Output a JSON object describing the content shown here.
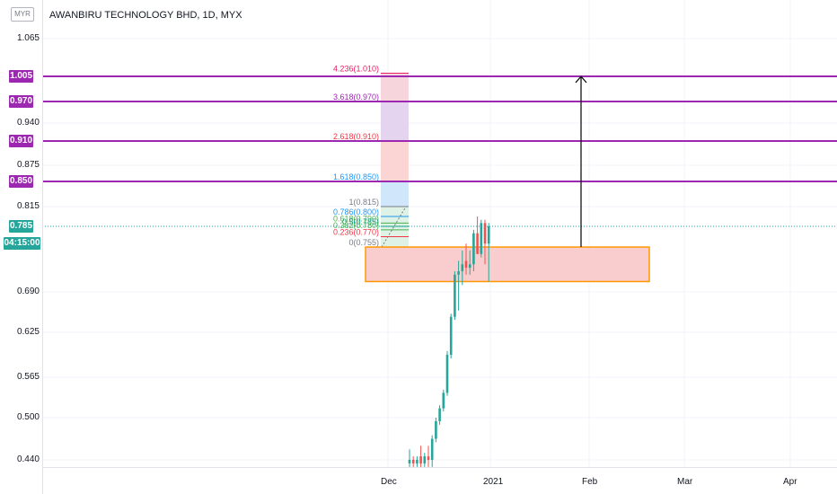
{
  "currency_badge": "MYR",
  "title": "AWANBIRU TECHNOLOGY BHD, 1D, MYX",
  "y_axis_labels": [
    {
      "text": "1.065",
      "value": 1.065
    },
    {
      "text": "1.005",
      "value": 1.005
    },
    {
      "text": "0.970",
      "value": 0.97
    },
    {
      "text": "0.940",
      "value": 0.94
    },
    {
      "text": "0.910",
      "value": 0.91
    },
    {
      "text": "0.875",
      "value": 0.875
    },
    {
      "text": "0.850",
      "value": 0.85
    },
    {
      "text": "0.815",
      "value": 0.815
    },
    {
      "text": "0.785",
      "value": 0.785
    },
    {
      "text": "0.690",
      "value": 0.69
    },
    {
      "text": "0.625",
      "value": 0.625
    },
    {
      "text": "0.565",
      "value": 0.565
    },
    {
      "text": "0.500",
      "value": 0.5
    },
    {
      "text": "0.440",
      "value": 0.44
    }
  ],
  "price_tags": [
    {
      "text": "1.005",
      "value": 1.005,
      "color": "#9c27b0"
    },
    {
      "text": "0.970",
      "value": 0.97,
      "color": "#9c27b0"
    },
    {
      "text": "0.910",
      "value": 0.91,
      "color": "#9c27b0"
    },
    {
      "text": "0.850",
      "value": 0.85,
      "color": "#9c27b0"
    },
    {
      "text": "0.785",
      "value": 0.785,
      "color": "#26a69a"
    }
  ],
  "countdown": "04:15:00",
  "x_axis_labels": [
    "Dec",
    "2021",
    "Feb",
    "Mar",
    "Apr"
  ],
  "fib_levels": [
    {
      "text": "4.236(1.010)",
      "value": 1.01,
      "color": "#e91e63"
    },
    {
      "text": "3.618(0.970)",
      "value": 0.97,
      "color": "#9c27b0"
    },
    {
      "text": "2.618(0.910)",
      "value": 0.91,
      "color": "#f23645"
    },
    {
      "text": "1.618(0.850)",
      "value": 0.85,
      "color": "#2196f3"
    },
    {
      "text": "1(0.815)",
      "value": 0.815,
      "color": "#787b86"
    },
    {
      "text": "0.786(0.800)",
      "value": 0.8,
      "color": "#2196f3"
    },
    {
      "text": "0.618(0.790)",
      "value": 0.79,
      "color": "#4caf50"
    },
    {
      "text": "0.5(0.785)",
      "value": 0.785,
      "color": "#089981"
    },
    {
      "text": "0.382(0.780)",
      "value": 0.78,
      "color": "#4caf50"
    },
    {
      "text": "0.236(0.770)",
      "value": 0.77,
      "color": "#f23645"
    },
    {
      "text": "0(0.755)",
      "value": 0.755,
      "color": "#787b86"
    }
  ],
  "horizontal_lines": [
    1.005,
    0.97,
    0.91,
    0.85
  ],
  "colors": {
    "up": "#26a69a",
    "down": "#ef5350",
    "resistance": "#9c27b0",
    "zone_border": "#ff9800",
    "zone_fill": "#f8c4c4",
    "last_price": "#26a69a"
  },
  "chart_data": {
    "type": "candlestick",
    "title": "AWANBIRU TECHNOLOGY BHD, 1D, MYX",
    "ylim": [
      0.43,
      1.08
    ],
    "grid": true,
    "x_ticks": [
      "Dec",
      "2021",
      "Feb",
      "Mar",
      "Apr"
    ],
    "last_price": 0.785,
    "zone": {
      "low": 0.705,
      "high": 0.755
    },
    "target_arrow": {
      "from": 0.755,
      "to": 1.005
    },
    "candles": [
      {
        "o": 0.435,
        "h": 0.455,
        "l": 0.43,
        "c": 0.44
      },
      {
        "o": 0.44,
        "h": 0.445,
        "l": 0.43,
        "c": 0.435
      },
      {
        "o": 0.435,
        "h": 0.445,
        "l": 0.43,
        "c": 0.44
      },
      {
        "o": 0.445,
        "h": 0.46,
        "l": 0.43,
        "c": 0.435
      },
      {
        "o": 0.435,
        "h": 0.45,
        "l": 0.43,
        "c": 0.445
      },
      {
        "o": 0.445,
        "h": 0.46,
        "l": 0.43,
        "c": 0.44
      },
      {
        "o": 0.44,
        "h": 0.475,
        "l": 0.43,
        "c": 0.47
      },
      {
        "o": 0.47,
        "h": 0.5,
        "l": 0.465,
        "c": 0.495
      },
      {
        "o": 0.495,
        "h": 0.52,
        "l": 0.49,
        "c": 0.515
      },
      {
        "o": 0.515,
        "h": 0.545,
        "l": 0.51,
        "c": 0.54
      },
      {
        "o": 0.54,
        "h": 0.6,
        "l": 0.535,
        "c": 0.595
      },
      {
        "o": 0.595,
        "h": 0.655,
        "l": 0.59,
        "c": 0.65
      },
      {
        "o": 0.65,
        "h": 0.72,
        "l": 0.645,
        "c": 0.715
      },
      {
        "o": 0.715,
        "h": 0.735,
        "l": 0.66,
        "c": 0.72
      },
      {
        "o": 0.72,
        "h": 0.75,
        "l": 0.7,
        "c": 0.73
      },
      {
        "o": 0.735,
        "h": 0.76,
        "l": 0.715,
        "c": 0.725
      },
      {
        "o": 0.725,
        "h": 0.75,
        "l": 0.715,
        "c": 0.73
      },
      {
        "o": 0.73,
        "h": 0.78,
        "l": 0.72,
        "c": 0.775
      },
      {
        "o": 0.775,
        "h": 0.8,
        "l": 0.745,
        "c": 0.745
      },
      {
        "o": 0.745,
        "h": 0.795,
        "l": 0.74,
        "c": 0.79
      },
      {
        "o": 0.79,
        "h": 0.795,
        "l": 0.73,
        "c": 0.76
      },
      {
        "o": 0.76,
        "h": 0.79,
        "l": 0.705,
        "c": 0.785
      }
    ]
  }
}
